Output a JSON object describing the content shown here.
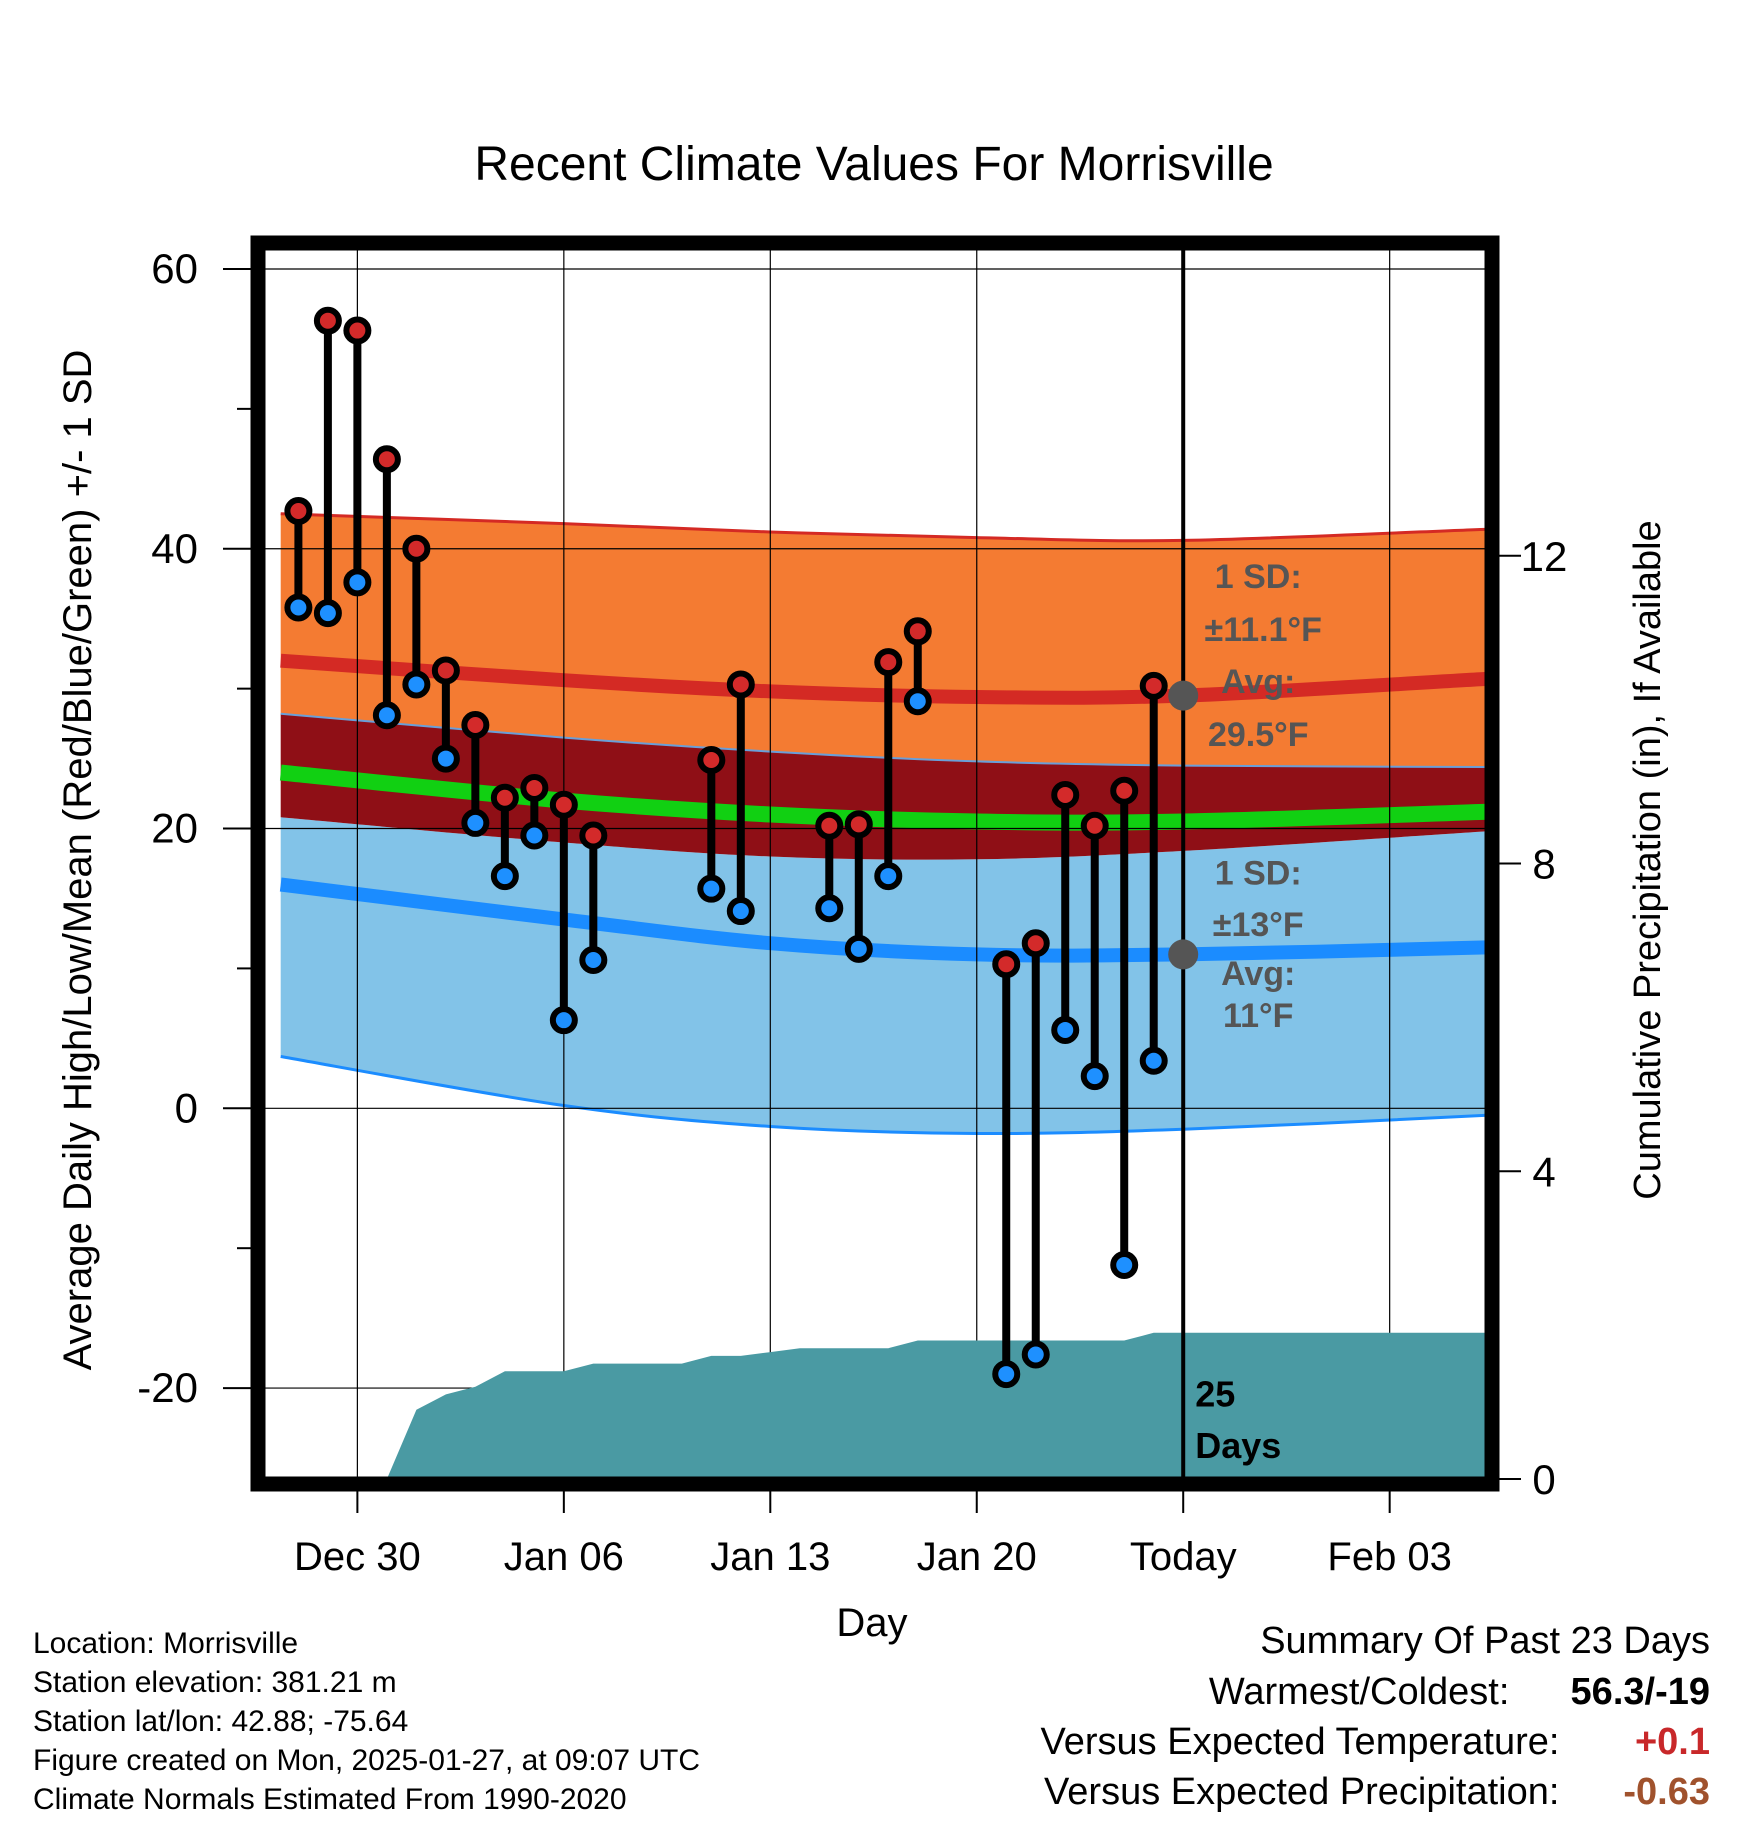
{
  "chart_data": {
    "type": "line",
    "title": "Recent Climate Values For Morrisville",
    "xlabel": "Day",
    "ylabel": "Average Daily High/Low/Mean (Red/Blue/Green) +/- 1 SD",
    "y2label": "Cumulative Precipitation (in), If Available",
    "xlim": [
      -3.2,
      38.3
    ],
    "ylim": [
      -26.5,
      61.5
    ],
    "y2lim": [
      0,
      16
    ],
    "x_ticks": [
      {
        "x": 0,
        "label": "Dec 30"
      },
      {
        "x": 7,
        "label": "Jan 06"
      },
      {
        "x": 14,
        "label": "Jan 13"
      },
      {
        "x": 21,
        "label": "Jan 20"
      },
      {
        "x": 28,
        "label": "Today"
      },
      {
        "x": 35,
        "label": "Feb 03"
      }
    ],
    "y_ticks": [
      60,
      40,
      20,
      0,
      -20
    ],
    "y2_ticks": [
      0,
      4,
      8,
      12
    ],
    "today_x": 28,
    "normals": {
      "x": [
        -2.6,
        7,
        14,
        21,
        28,
        38.3
      ],
      "high_avg": [
        32.0,
        30.6,
        29.8,
        29.4,
        29.5,
        30.7
      ],
      "high_plus_sd": [
        42.5,
        41.8,
        41.2,
        40.8,
        40.6,
        41.4
      ],
      "high_minus_sd": [
        28.2,
        26.5,
        25.5,
        24.8,
        24.5,
        24.4
      ],
      "mean_avg": [
        24.0,
        22.0,
        21.0,
        20.5,
        20.5,
        21.2
      ],
      "low_avg": [
        16.0,
        13.5,
        11.8,
        11.0,
        11.0,
        11.5
      ],
      "low_plus_sd": [
        20.8,
        19.0,
        18.0,
        17.8,
        18.4,
        19.8
      ],
      "low_minus_sd": [
        3.7,
        0.2,
        -1.3,
        -1.8,
        -1.5,
        -0.5
      ]
    },
    "series": [
      {
        "name": "Daily High",
        "x": [
          -2,
          -1,
          0,
          1,
          2,
          3,
          4,
          5,
          6,
          7,
          8,
          12,
          13,
          16,
          17,
          18,
          19,
          22,
          23,
          24,
          25,
          26,
          27
        ],
        "values": [
          42.7,
          56.3,
          55.6,
          46.4,
          40.0,
          31.3,
          27.4,
          22.2,
          22.9,
          21.7,
          19.5,
          24.9,
          30.3,
          20.2,
          20.3,
          31.9,
          34.1,
          10.3,
          11.8,
          22.4,
          20.2,
          22.7,
          30.2
        ]
      },
      {
        "name": "Daily Low",
        "x": [
          -2,
          -1,
          0,
          1,
          2,
          3,
          4,
          5,
          6,
          7,
          8,
          12,
          13,
          16,
          17,
          18,
          19,
          22,
          23,
          24,
          25,
          26,
          27
        ],
        "values": [
          35.8,
          35.4,
          37.6,
          28.1,
          30.3,
          25.0,
          20.4,
          16.6,
          19.5,
          6.3,
          10.6,
          15.7,
          14.1,
          14.3,
          11.4,
          16.6,
          29.1,
          -19.0,
          -17.6,
          5.6,
          2.3,
          -11.2,
          3.4
        ]
      }
    ],
    "precipitation": {
      "x": [
        -2.6,
        1,
        2,
        3,
        4,
        5,
        6,
        7,
        8,
        9,
        10,
        11,
        12,
        13,
        14,
        15,
        16,
        17,
        18,
        19,
        20,
        21,
        22,
        23,
        24,
        25,
        26,
        27,
        28,
        29,
        38.3
      ],
      "values": [
        0,
        0,
        0.9,
        1.1,
        1.2,
        1.4,
        1.4,
        1.4,
        1.5,
        1.5,
        1.5,
        1.5,
        1.6,
        1.6,
        1.65,
        1.7,
        1.7,
        1.7,
        1.7,
        1.8,
        1.8,
        1.8,
        1.8,
        1.8,
        1.8,
        1.8,
        1.8,
        1.9,
        1.9,
        1.9,
        1.9
      ]
    },
    "annotations": {
      "high_sd": "1 SD:",
      "high_sd_val": "±11.1°F",
      "high_avg_label": "Avg:",
      "high_avg_val": "29.5°F",
      "low_sd": "1 SD:",
      "low_sd_val": "±13°F",
      "low_avg_label": "Avg:",
      "low_avg_val": "11°F",
      "days_num": "25",
      "days_word": "Days",
      "high_avg_marker": 29.5,
      "low_avg_marker": 11
    },
    "colors": {
      "high_band": "#f47b32",
      "high_line": "#d42a24",
      "mean_band": "#8f0f16",
      "mean_line": "#11d012",
      "low_band": "#82c3e8",
      "low_line": "#1b8cff",
      "precip": "#4a9aa3",
      "high_marker": "#d32a2a",
      "low_marker": "#1e90ff",
      "annotation": "#555555"
    }
  },
  "info": {
    "location": "Location: Morrisville",
    "elevation": "Station elevation: 381.21 m",
    "latlon": "Station lat/lon: 42.88; -75.64",
    "created": "Figure created on Mon, 2025-01-27, at 09:07 UTC",
    "normals": "Climate Normals Estimated From 1990-2020"
  },
  "summary": {
    "title": "Summary Of Past 23 Days",
    "warmest_label": "Warmest/Coldest:",
    "warmest_value": "56.3/-19",
    "temp_label": "Versus Expected Temperature:",
    "temp_value": "+0.1",
    "temp_color": "#c8282a",
    "precip_label": "Versus Expected Precipitation:",
    "precip_value": "-0.63",
    "precip_color": "#a0522d"
  }
}
